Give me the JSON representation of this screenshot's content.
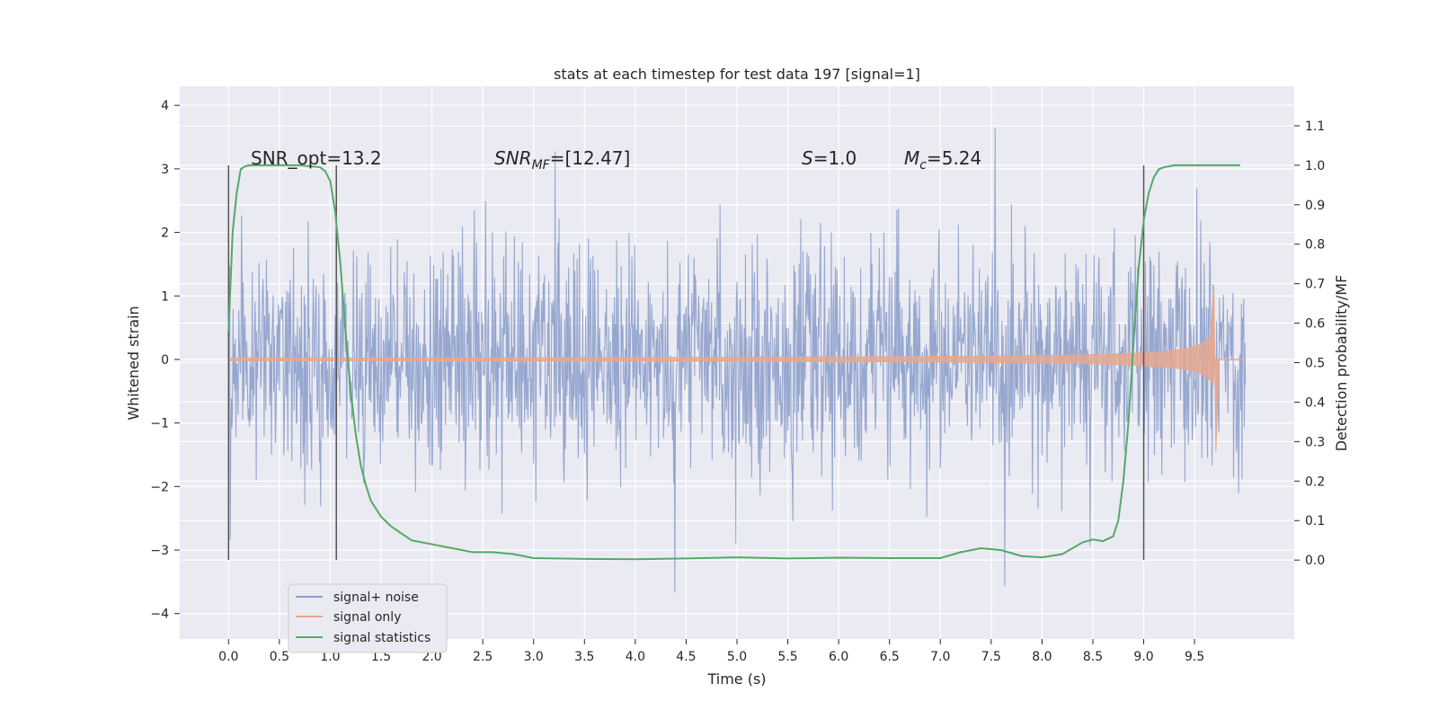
{
  "chart_data": {
    "type": "line",
    "title": "stats at each timestep for test data 197 [signal=1]",
    "xlabel": "Time (s)",
    "ylabel_left": "Whitened strain",
    "ylabel_right": "Detection probability/MF",
    "xlim": [
      -0.48,
      10.48
    ],
    "ylim_left": [
      -4.4,
      4.3
    ],
    "ylim_right": [
      -0.2,
      1.2
    ],
    "x_ticks": [
      "0.0",
      "0.5",
      "1.0",
      "1.5",
      "2.0",
      "2.5",
      "3.0",
      "3.5",
      "4.0",
      "4.5",
      "5.0",
      "5.5",
      "6.0",
      "6.5",
      "7.0",
      "7.5",
      "8.0",
      "8.5",
      "9.0",
      "9.5"
    ],
    "y_ticks_left": [
      "−4",
      "−3",
      "−2",
      "−1",
      "0",
      "1",
      "2",
      "3",
      "4"
    ],
    "y_ticks_right": [
      "0.0",
      "0.1",
      "0.2",
      "0.3",
      "0.4",
      "0.5",
      "0.6",
      "0.7",
      "0.8",
      "0.9",
      "1.0",
      "1.1"
    ],
    "grid": true,
    "legend_position": "lower-left",
    "annotations": {
      "snr_opt": "SNR_opt=13.2",
      "snr_mf": "=[12.47]",
      "s": "=1.0",
      "mc": "=5.24"
    },
    "window_markers": [
      0.0,
      1.06,
      9.0
    ],
    "series": [
      {
        "name": "signal+ noise",
        "color": "#8da0cb",
        "description_values": "whitened strain noise, approx ±2.5, spans 0.0 to 10.0 s"
      },
      {
        "name": "signal only",
        "color": "#e5a890",
        "chirp_end_time": 9.7,
        "max_amplitude": 1.15
      },
      {
        "name": "signal statistics",
        "color": "#55a868",
        "x": [
          0.0,
          0.04,
          0.08,
          0.12,
          0.16,
          0.2,
          0.3,
          0.5,
          0.7,
          0.9,
          0.95,
          1.0,
          1.05,
          1.1,
          1.15,
          1.2,
          1.25,
          1.3,
          1.35,
          1.4,
          1.5,
          1.6,
          1.8,
          2.0,
          2.2,
          2.4,
          2.6,
          2.8,
          3.0,
          3.5,
          4.0,
          4.5,
          5.0,
          5.5,
          6.0,
          6.5,
          7.0,
          7.2,
          7.4,
          7.6,
          7.8,
          8.0,
          8.2,
          8.4,
          8.5,
          8.6,
          8.7,
          8.75,
          8.8,
          8.85,
          8.9,
          8.95,
          9.0,
          9.05,
          9.1,
          9.15,
          9.2,
          9.3,
          9.5,
          9.7,
          9.9,
          9.95
        ],
        "values": [
          0.58,
          0.83,
          0.93,
          0.99,
          0.997,
          1.0,
          1.0,
          1.0,
          1.0,
          0.995,
          0.985,
          0.96,
          0.88,
          0.75,
          0.58,
          0.43,
          0.32,
          0.24,
          0.19,
          0.15,
          0.11,
          0.085,
          0.05,
          0.04,
          0.03,
          0.02,
          0.02,
          0.015,
          0.005,
          0.003,
          0.002,
          0.004,
          0.007,
          0.004,
          0.006,
          0.005,
          0.005,
          0.02,
          0.03,
          0.025,
          0.01,
          0.007,
          0.015,
          0.045,
          0.052,
          0.048,
          0.06,
          0.1,
          0.2,
          0.35,
          0.55,
          0.74,
          0.86,
          0.93,
          0.97,
          0.99,
          0.995,
          1.0,
          1.0,
          1.0,
          1.0,
          1.0
        ]
      }
    ]
  }
}
